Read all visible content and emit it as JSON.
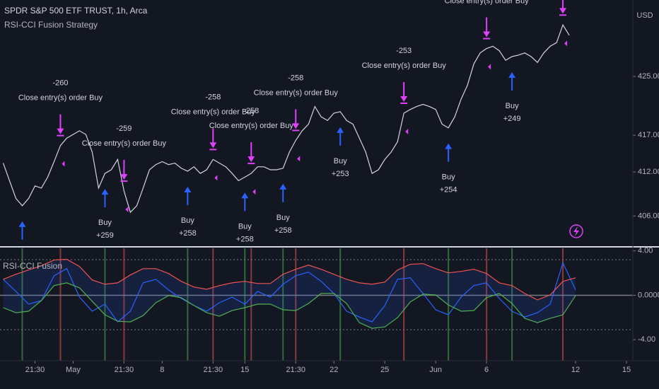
{
  "chart_data": [
    {
      "type": "line",
      "title": "SPDR S&P 500 ETF TRUST, 1h, Arca",
      "subtitle": "RSI-CCI Fusion Strategy",
      "y_unit": "USD",
      "x": [
        0,
        1,
        2,
        3,
        4,
        5,
        6,
        7,
        8,
        9,
        10,
        11,
        12,
        13,
        14,
        15,
        16,
        17,
        18,
        19,
        20,
        21,
        22,
        23,
        24,
        25,
        26,
        27,
        28,
        29,
        30,
        31,
        32,
        33,
        34,
        35,
        36,
        37,
        38,
        39,
        40,
        41,
        42,
        43,
        44,
        45,
        46,
        47,
        48,
        49,
        50,
        51,
        52,
        53,
        54,
        55,
        56,
        57,
        58,
        59,
        60,
        61,
        62,
        63,
        64,
        65,
        66,
        67,
        68,
        69,
        70,
        71,
        72,
        73,
        74,
        75,
        76,
        77,
        78,
        79,
        80,
        81,
        82,
        83,
        84,
        85,
        86,
        87,
        88,
        89
      ],
      "color": "#d1d4dc",
      "values": [
        413.2,
        410.8,
        408.4,
        407.4,
        408.4,
        410.1,
        409.8,
        411.3,
        413.4,
        415.6,
        416.6,
        417.1,
        417.6,
        417.1,
        414.7,
        409.8,
        411.8,
        412.3,
        413.7,
        409.4,
        406.5,
        407.4,
        409.8,
        412.3,
        413.0,
        413.4,
        413.0,
        413.2,
        412.5,
        412.1,
        412.7,
        411.8,
        412.3,
        413.7,
        413.2,
        412.7,
        411.8,
        410.8,
        411.3,
        411.8,
        412.7,
        412.7,
        412.3,
        412.3,
        412.5,
        414.7,
        416.3,
        417.6,
        418.5,
        420.9,
        419.5,
        419.0,
        420.0,
        420.2,
        419.0,
        418.5,
        416.6,
        414.7,
        411.8,
        412.3,
        413.7,
        414.7,
        416.1,
        420.0,
        420.5,
        420.9,
        421.2,
        420.9,
        420.5,
        418.5,
        418.0,
        419.5,
        421.9,
        423.8,
        426.7,
        428.2,
        428.8,
        429.1,
        428.5,
        427.2,
        427.7,
        427.9,
        428.2,
        427.7,
        426.9,
        428.2,
        429.1,
        429.6,
        432.0,
        430.6
      ],
      "xlim": [
        -0.5,
        99
      ],
      "ylim": [
        401.9,
        435.4
      ],
      "yticks": [
        {
          "value": 406,
          "label": "406.00"
        },
        {
          "value": 412,
          "label": "412.00"
        },
        {
          "value": 417,
          "label": "417.00"
        },
        {
          "value": 425,
          "label": "425.00"
        }
      ],
      "buys": [
        {
          "at": 3
        },
        {
          "at": 16,
          "text": "Buy",
          "amount": "+259"
        },
        {
          "at": 29,
          "text": "Buy",
          "amount": "+258"
        },
        {
          "at": 38,
          "text": "Buy",
          "amount": "+258"
        },
        {
          "at": 44,
          "text": "Buy",
          "amount": "+258"
        },
        {
          "at": 53,
          "text": "Buy",
          "amount": "+253"
        },
        {
          "at": 70,
          "text": "Buy",
          "amount": "+254"
        },
        {
          "at": 80,
          "text": "Buy",
          "amount": "+249"
        }
      ],
      "closes": [
        {
          "at": 9,
          "amount": "-260",
          "text": "Close entry(s) order Buy"
        },
        {
          "at": 19,
          "amount": "-259",
          "text": "Close entry(s) order Buy"
        },
        {
          "at": 33,
          "amount": "-258",
          "text": "Close entry(s) order Buy"
        },
        {
          "at": 39,
          "amount": "-258",
          "text": "Close entry(s) order Buy"
        },
        {
          "at": 46,
          "amount": "-258",
          "text": "Close entry(s) order Buy"
        },
        {
          "at": 63,
          "amount": "-253",
          "text": "Close entry(s) order Buy"
        },
        {
          "at": 76,
          "text": "Close entry(s) order Buy"
        },
        {
          "at": 88
        }
      ],
      "buy_color": "#2962ff",
      "close_color": "#e040fb"
    },
    {
      "type": "line",
      "title": "RSI-CCI Fusion",
      "x": [
        0,
        2,
        4,
        6,
        8,
        10,
        12,
        14,
        16,
        18,
        20,
        22,
        24,
        26,
        28,
        30,
        32,
        34,
        36,
        38,
        40,
        42,
        44,
        46,
        48,
        50,
        52,
        54,
        56,
        58,
        60,
        62,
        64,
        66,
        68,
        70,
        72,
        74,
        76,
        78,
        80,
        82,
        84,
        86,
        88,
        90
      ],
      "series": [
        {
          "color": "#2962ff",
          "values": [
            1.44,
            0.35,
            -0.8,
            -0.48,
            1.76,
            2.4,
            -0.16,
            -1.44,
            -0.8,
            -2.4,
            -1.44,
            1.12,
            1.44,
            0.48,
            -0.29,
            -0.93,
            -1.44,
            -0.67,
            -0.16,
            -0.8,
            0.35,
            -0.16,
            0.99,
            1.76,
            2.08,
            1.25,
            0.16,
            -1.44,
            -1.96,
            -2.4,
            -0.93,
            1.44,
            1.57,
            0.16,
            -1.31,
            -1.76,
            -0.16,
            0.87,
            1.12,
            -0.29,
            -1.44,
            -1.96,
            -1.57,
            -0.8,
            2.92,
            0.48
          ]
        },
        {
          "color": "#ef5350",
          "values": [
            1.44,
            1.89,
            2.28,
            2.66,
            3.17,
            3.24,
            2.6,
            1.38,
            0.99,
            1.12,
            1.83,
            2.4,
            2.4,
            1.96,
            1.25,
            0.74,
            0.54,
            0.87,
            1.12,
            1.25,
            1.06,
            1.06,
            1.89,
            2.34,
            2.72,
            2.34,
            1.89,
            1.44,
            1.12,
            0.99,
            1.19,
            2.28,
            2.79,
            2.85,
            2.4,
            2.02,
            2.15,
            2.34,
            1.96,
            1.12,
            0.87,
            0.16,
            -0.42,
            0.03,
            1.25,
            1.57
          ]
        },
        {
          "color": "#4caf50",
          "values": [
            -1.12,
            -1.57,
            -1.44,
            -0.48,
            0.87,
            1.12,
            0.67,
            -0.54,
            -1.76,
            -2.34,
            -2.4,
            -1.83,
            -0.67,
            -0.03,
            -0.22,
            -0.93,
            -1.57,
            -1.89,
            -1.38,
            -1.12,
            -0.8,
            -0.8,
            -1.31,
            -1.38,
            -0.74,
            0.16,
            0.16,
            -0.74,
            -2.47,
            -2.98,
            -2.85,
            -2.02,
            -0.61,
            0.1,
            0.03,
            -0.87,
            -1.44,
            -1.38,
            -0.22,
            0.16,
            -0.74,
            -2.08,
            -2.47,
            -2.08,
            -1.76,
            -0.03
          ]
        }
      ],
      "band_fill": "#2962ff",
      "levels": [
        3.2,
        0,
        -3.1
      ],
      "xlim": [
        -0.5,
        99
      ],
      "ylim": [
        -5.9,
        4.3
      ],
      "yticks": [
        {
          "value": 4,
          "label": "4.00"
        },
        {
          "value": 0,
          "label": "0.0000"
        },
        {
          "value": -4,
          "label": "-4.00"
        }
      ],
      "xticks": [
        {
          "value": 5,
          "label": "21:30"
        },
        {
          "value": 11,
          "label": "May"
        },
        {
          "value": 19,
          "label": "21:30"
        },
        {
          "value": 25,
          "label": "8"
        },
        {
          "value": 33,
          "label": "21:30"
        },
        {
          "value": 38,
          "label": "15"
        },
        {
          "value": 46,
          "label": "21:30"
        },
        {
          "value": 52,
          "label": "22"
        },
        {
          "value": 60,
          "label": "25"
        },
        {
          "value": 68,
          "label": "Jun"
        },
        {
          "value": 76,
          "label": "6"
        },
        {
          "value": 90,
          "label": "12"
        },
        {
          "value": 98,
          "label": "15"
        }
      ]
    }
  ]
}
